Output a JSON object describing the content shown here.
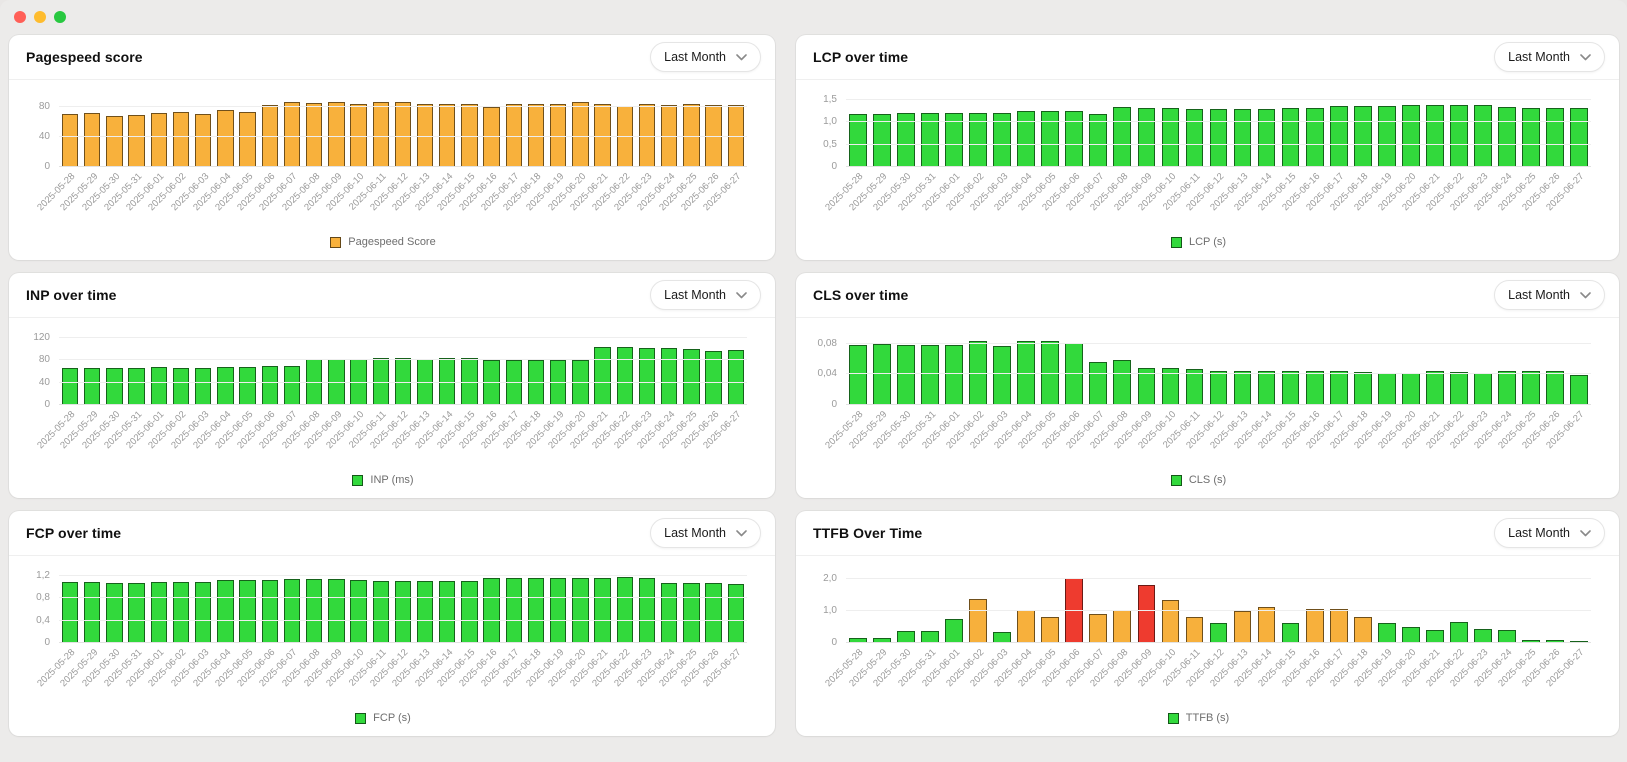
{
  "window": {
    "traffic_lights": [
      {
        "name": "close",
        "color": "#FF5F57"
      },
      {
        "name": "minimize",
        "color": "#FEBC2E"
      },
      {
        "name": "zoom",
        "color": "#28C840"
      }
    ]
  },
  "panels": [
    {
      "title": "Pagespeed score",
      "dropdown": "Last Month"
    },
    {
      "title": "LCP over time",
      "dropdown": "Last Month"
    },
    {
      "title": "INP over time",
      "dropdown": "Last Month"
    },
    {
      "title": "CLS over time",
      "dropdown": "Last Month"
    },
    {
      "title": "FCP over time",
      "dropdown": "Last Month"
    },
    {
      "title": "TTFB Over Time",
      "dropdown": "Last Month"
    }
  ],
  "colors": {
    "good_green": "#32D93C",
    "warn_orange": "#F7B03C",
    "bad_red": "#EE3B2F",
    "pagespeed_orange": "#F8B13C"
  },
  "chart_data": [
    {
      "type": "bar",
      "title": "Pagespeed score",
      "legend": "Pagespeed Score",
      "bar_color": "#F8B13C",
      "border_color": "rgba(0,0,0,0.55)",
      "ylim": [
        0,
        90
      ],
      "tick_values": [
        0,
        40,
        80
      ],
      "tick_labels": [
        "0",
        "40",
        "80"
      ],
      "grid": true,
      "legend_position": "bottom",
      "categories": [
        "2025-05-28",
        "2025-05-29",
        "2025-05-30",
        "2025-05-31",
        "2025-06-01",
        "2025-06-02",
        "2025-06-03",
        "2025-06-04",
        "2025-06-05",
        "2025-06-06",
        "2025-06-07",
        "2025-06-08",
        "2025-06-09",
        "2025-06-10",
        "2025-06-11",
        "2025-06-12",
        "2025-06-13",
        "2025-06-14",
        "2025-06-15",
        "2025-06-16",
        "2025-06-17",
        "2025-06-18",
        "2025-06-19",
        "2025-06-20",
        "2025-06-21",
        "2025-06-22",
        "2025-06-23",
        "2025-06-24",
        "2025-06-25",
        "2025-06-26",
        "2025-06-27"
      ],
      "values": [
        71,
        72,
        69,
        70,
        72,
        74,
        71,
        76,
        74,
        83,
        87,
        86,
        87,
        84,
        87,
        88,
        84,
        85,
        85,
        80,
        84,
        84,
        85,
        87,
        85,
        82,
        84,
        83,
        84,
        83,
        83
      ]
    },
    {
      "type": "bar",
      "title": "LCP over time",
      "legend": "LCP (s)",
      "bar_color": "#32D93C",
      "border_color": "rgba(0,0,0,0.55)",
      "ylim": [
        0,
        1.5
      ],
      "tick_values": [
        0,
        0.5,
        1.0,
        1.5
      ],
      "tick_labels": [
        "0",
        "0,5",
        "1,0",
        "1,5"
      ],
      "grid": true,
      "legend_position": "bottom",
      "categories": [
        "2025-05-28",
        "2025-05-29",
        "2025-05-30",
        "2025-05-31",
        "2025-06-01",
        "2025-06-02",
        "2025-06-03",
        "2025-06-04",
        "2025-06-05",
        "2025-06-06",
        "2025-06-07",
        "2025-06-08",
        "2025-06-09",
        "2025-06-10",
        "2025-06-11",
        "2025-06-12",
        "2025-06-13",
        "2025-06-14",
        "2025-06-15",
        "2025-06-16",
        "2025-06-17",
        "2025-06-18",
        "2025-06-19",
        "2025-06-20",
        "2025-06-21",
        "2025-06-22",
        "2025-06-23",
        "2025-06-24",
        "2025-06-25",
        "2025-06-26",
        "2025-06-27"
      ],
      "values": [
        1.19,
        1.19,
        1.2,
        1.2,
        1.21,
        1.21,
        1.21,
        1.25,
        1.25,
        1.25,
        1.18,
        1.35,
        1.33,
        1.32,
        1.31,
        1.3,
        1.31,
        1.31,
        1.33,
        1.33,
        1.37,
        1.37,
        1.37,
        1.38,
        1.38,
        1.38,
        1.39,
        1.35,
        1.33,
        1.33,
        1.33
      ]
    },
    {
      "type": "bar",
      "title": "INP over time",
      "legend": "INP (ms)",
      "bar_color": "#32D93C",
      "border_color": "rgba(0,0,0,0.55)",
      "ylim": [
        0,
        120
      ],
      "tick_values": [
        0,
        40,
        80,
        120
      ],
      "tick_labels": [
        "0",
        "40",
        "80",
        "120"
      ],
      "grid": true,
      "legend_position": "bottom",
      "categories": [
        "2025-05-28",
        "2025-05-29",
        "2025-05-30",
        "2025-05-31",
        "2025-06-01",
        "2025-06-02",
        "2025-06-03",
        "2025-06-04",
        "2025-06-05",
        "2025-06-06",
        "2025-06-07",
        "2025-06-08",
        "2025-06-09",
        "2025-06-10",
        "2025-06-11",
        "2025-06-12",
        "2025-06-13",
        "2025-06-14",
        "2025-06-15",
        "2025-06-16",
        "2025-06-17",
        "2025-06-18",
        "2025-06-19",
        "2025-06-20",
        "2025-06-21",
        "2025-06-22",
        "2025-06-23",
        "2025-06-24",
        "2025-06-25",
        "2025-06-26",
        "2025-06-27"
      ],
      "values": [
        67,
        67,
        67,
        67,
        68,
        67,
        67,
        68,
        68,
        70,
        70,
        83,
        83,
        83,
        84,
        84,
        83,
        84,
        85,
        81,
        81,
        81,
        80,
        80,
        104,
        104,
        103,
        102,
        100,
        97,
        98
      ]
    },
    {
      "type": "bar",
      "title": "CLS over time",
      "legend": "CLS (s)",
      "bar_color": "#32D93C",
      "border_color": "rgba(0,0,0,0.55)",
      "ylim": [
        0,
        0.0875
      ],
      "tick_values": [
        0,
        0.04,
        0.08
      ],
      "tick_labels": [
        "0",
        "0,04",
        "0,08"
      ],
      "grid": true,
      "legend_position": "bottom",
      "categories": [
        "2025-05-28",
        "2025-05-29",
        "2025-05-30",
        "2025-05-31",
        "2025-06-01",
        "2025-06-02",
        "2025-06-03",
        "2025-06-04",
        "2025-06-05",
        "2025-06-06",
        "2025-06-07",
        "2025-06-08",
        "2025-06-09",
        "2025-06-10",
        "2025-06-11",
        "2025-06-12",
        "2025-06-13",
        "2025-06-14",
        "2025-06-15",
        "2025-06-16",
        "2025-06-17",
        "2025-06-18",
        "2025-06-19",
        "2025-06-20",
        "2025-06-21",
        "2025-06-22",
        "2025-06-23",
        "2025-06-24",
        "2025-06-25",
        "2025-06-26",
        "2025-06-27"
      ],
      "values": [
        0.079,
        0.08,
        0.078,
        0.079,
        0.078,
        0.083,
        0.077,
        0.083,
        0.083,
        0.081,
        0.056,
        0.059,
        0.048,
        0.048,
        0.047,
        0.045,
        0.045,
        0.044,
        0.044,
        0.044,
        0.044,
        0.043,
        0.042,
        0.042,
        0.044,
        0.043,
        0.042,
        0.045,
        0.045,
        0.045,
        0.039
      ]
    },
    {
      "type": "bar",
      "title": "FCP over time",
      "legend": "FCP (s)",
      "bar_color": "#32D93C",
      "border_color": "rgba(0,0,0,0.55)",
      "ylim": [
        0,
        1.2
      ],
      "tick_values": [
        0,
        0.4,
        0.8,
        1.2
      ],
      "tick_labels": [
        "0",
        "0,4",
        "0,8",
        "1,2"
      ],
      "grid": true,
      "legend_position": "bottom",
      "categories": [
        "2025-05-28",
        "2025-05-29",
        "2025-05-30",
        "2025-05-31",
        "2025-06-01",
        "2025-06-02",
        "2025-06-03",
        "2025-06-04",
        "2025-06-05",
        "2025-06-06",
        "2025-06-07",
        "2025-06-08",
        "2025-06-09",
        "2025-06-10",
        "2025-06-11",
        "2025-06-12",
        "2025-06-13",
        "2025-06-14",
        "2025-06-15",
        "2025-06-16",
        "2025-06-17",
        "2025-06-18",
        "2025-06-19",
        "2025-06-20",
        "2025-06-21",
        "2025-06-22",
        "2025-06-23",
        "2025-06-24",
        "2025-06-25",
        "2025-06-26",
        "2025-06-27"
      ],
      "values": [
        1.09,
        1.09,
        1.08,
        1.08,
        1.09,
        1.1,
        1.09,
        1.13,
        1.13,
        1.13,
        1.14,
        1.15,
        1.14,
        1.13,
        1.11,
        1.11,
        1.11,
        1.11,
        1.11,
        1.17,
        1.17,
        1.17,
        1.17,
        1.16,
        1.17,
        1.18,
        1.17,
        1.08,
        1.07,
        1.08,
        1.06
      ]
    },
    {
      "type": "bar",
      "title": "TTFB Over Time",
      "legend": "TTFB (s)",
      "bar_color": "#32D93C",
      "border_color": "rgba(0,0,0,0.55)",
      "ylim": [
        0,
        2.1
      ],
      "tick_values": [
        0,
        1.0,
        2.0
      ],
      "tick_labels": [
        "0",
        "1,0",
        "2,0"
      ],
      "grid": true,
      "legend_position": "bottom",
      "categories": [
        "2025-05-28",
        "2025-05-29",
        "2025-05-30",
        "2025-05-31",
        "2025-06-01",
        "2025-06-02",
        "2025-06-03",
        "2025-06-04",
        "2025-06-05",
        "2025-06-06",
        "2025-06-07",
        "2025-06-08",
        "2025-06-09",
        "2025-06-10",
        "2025-06-11",
        "2025-06-12",
        "2025-06-13",
        "2025-06-14",
        "2025-06-15",
        "2025-06-16",
        "2025-06-17",
        "2025-06-18",
        "2025-06-19",
        "2025-06-20",
        "2025-06-21",
        "2025-06-22",
        "2025-06-23",
        "2025-06-24",
        "2025-06-25",
        "2025-06-26",
        "2025-06-27"
      ],
      "values": [
        0.15,
        0.17,
        0.38,
        0.38,
        0.75,
        1.37,
        0.35,
        1.05,
        0.8,
        2.05,
        0.9,
        1.02,
        1.82,
        1.35,
        0.82,
        0.63,
        1.0,
        1.12,
        0.62,
        1.08,
        1.08,
        0.8,
        0.63,
        0.5,
        0.42,
        0.65,
        0.45,
        0.4,
        0.1,
        0.08,
        0.07
      ],
      "bar_colors": [
        "#32D93C",
        "#32D93C",
        "#32D93C",
        "#32D93C",
        "#32D93C",
        "#F7B03C",
        "#32D93C",
        "#F7B03C",
        "#F7B03C",
        "#EE3B2F",
        "#F7B03C",
        "#F7B03C",
        "#EE3B2F",
        "#F7B03C",
        "#F7B03C",
        "#32D93C",
        "#F7B03C",
        "#F7B03C",
        "#32D93C",
        "#F7B03C",
        "#F7B03C",
        "#F7B03C",
        "#32D93C",
        "#32D93C",
        "#32D93C",
        "#32D93C",
        "#32D93C",
        "#32D93C",
        "#32D93C",
        "#32D93C",
        "#32D93C"
      ]
    }
  ]
}
